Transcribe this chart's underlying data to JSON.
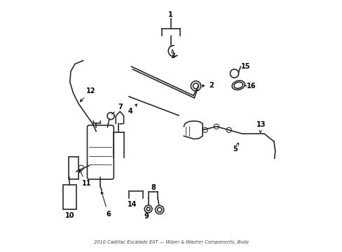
{
  "title": "2010 Cadillac Escalade EXT Wiper & Washer Components, Body Diagram",
  "bg_color": "#ffffff",
  "line_color": "#2a2a2a",
  "lw": 1.2,
  "component_color": "#2a2a2a"
}
